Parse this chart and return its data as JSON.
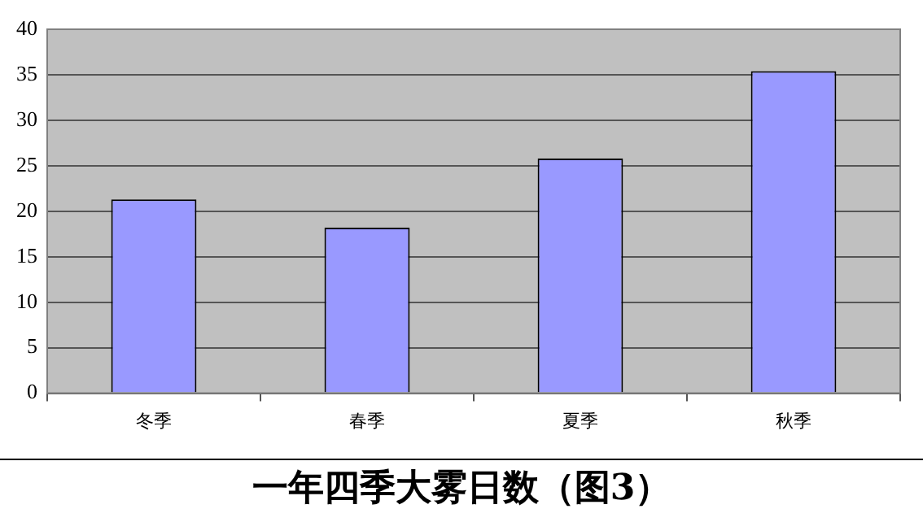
{
  "chart_data": {
    "type": "bar",
    "title": "一年四季大雾日数（图3）",
    "categories": [
      "冬季",
      "春季",
      "夏季",
      "秋季"
    ],
    "values": [
      21.3,
      18.2,
      25.8,
      35.4
    ],
    "color": "#9999ff",
    "ylim": [
      0,
      40
    ],
    "yticks": [
      0,
      5,
      10,
      15,
      20,
      25,
      30,
      35,
      40
    ],
    "grid": "y"
  }
}
